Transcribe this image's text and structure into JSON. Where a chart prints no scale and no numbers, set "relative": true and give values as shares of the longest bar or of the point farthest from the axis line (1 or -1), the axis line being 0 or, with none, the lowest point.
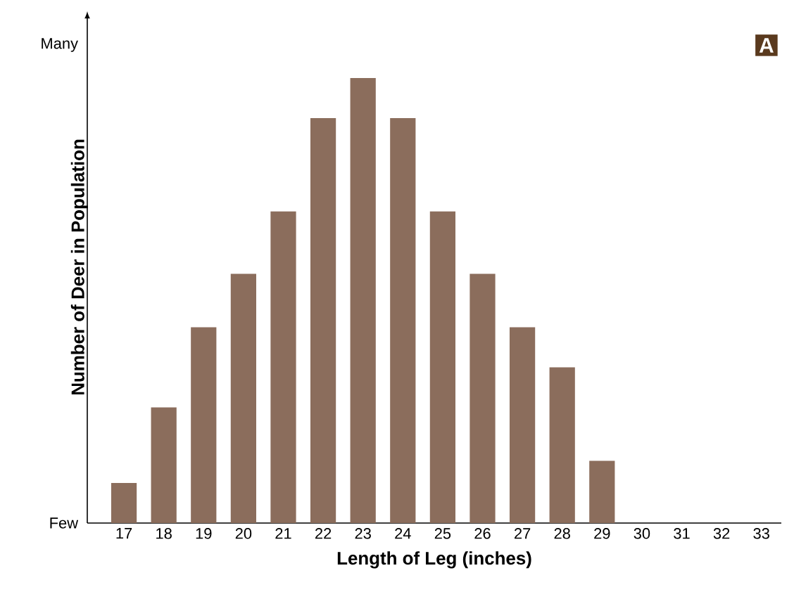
{
  "chart_data": {
    "type": "bar",
    "xlabel": "Length of Leg (inches)",
    "ylabel": "Number of Deer in Population",
    "categories": [
      "17",
      "18",
      "19",
      "20",
      "21",
      "22",
      "23",
      "24",
      "25",
      "26",
      "27",
      "28",
      "29",
      "30",
      "31",
      "32",
      "33"
    ],
    "values": [
      0.09,
      0.26,
      0.44,
      0.56,
      0.7,
      0.91,
      1,
      0.91,
      0.7,
      0.56,
      0.44,
      0.35,
      0.14,
      0,
      0,
      0,
      0
    ],
    "color": "#8b6d5c",
    "relative": true,
    "annotations": [
      "Few",
      "Many",
      "A"
    ]
  }
}
